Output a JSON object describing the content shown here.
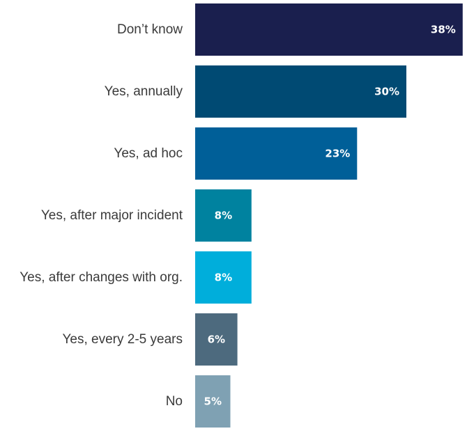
{
  "chart_data": {
    "type": "bar",
    "orientation": "horizontal",
    "categories": [
      "Don’t know",
      "Yes, annually",
      "Yes, ad hoc",
      "Yes, after major incident",
      "Yes, after changes with org.",
      "Yes, every 2-5 years",
      "No"
    ],
    "values": [
      38,
      30,
      23,
      8,
      8,
      6,
      5
    ],
    "value_labels": [
      "38%",
      "30%",
      "23%",
      "8%",
      "8%",
      "6%",
      "5%"
    ],
    "colors": [
      "#1a1f4e",
      "#004a73",
      "#005f98",
      "#00829f",
      "#00aedb",
      "#4d6a7e",
      "#7fa1b3"
    ],
    "title": "",
    "xlabel": "",
    "ylabel": "",
    "xlim": [
      0,
      38
    ],
    "grid": false,
    "legend": "none"
  }
}
